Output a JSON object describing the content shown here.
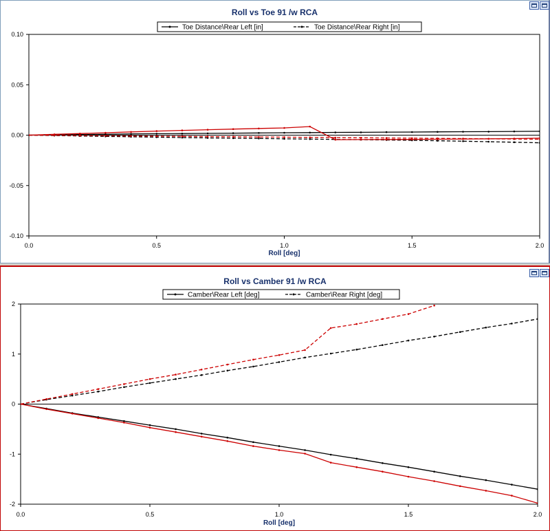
{
  "chart_data": [
    {
      "type": "line",
      "title": "Roll vs Toe 91 /w RCA",
      "xlabel": "Roll [deg]",
      "ylabel": "",
      "xlim": [
        0,
        2
      ],
      "ylim": [
        -0.1,
        0.1
      ],
      "xticks": [
        "0.0",
        "0.5",
        "1.0",
        "1.5",
        "2.0"
      ],
      "yticks": [
        "0.10",
        "0.05",
        "0.00",
        "-0.05",
        "-0.10"
      ],
      "grid": false,
      "legend": "top-center",
      "legend_entries": [
        "Toe Distance\\Rear Left [in]",
        "Toe Distance\\Rear Right [in]"
      ],
      "series": [
        {
          "name": "Toe Distance\\Rear Left [in]",
          "color": "#000000",
          "style": "solid",
          "x": [
            0,
            0.1,
            0.2,
            0.3,
            0.4,
            0.5,
            0.6,
            0.7,
            0.8,
            0.9,
            1.0,
            1.1,
            1.2,
            1.3,
            1.4,
            1.5,
            1.6,
            1.7,
            1.8,
            1.9,
            2.0
          ],
          "y": [
            0,
            0.0003,
            0.0006,
            0.0009,
            0.0012,
            0.0014,
            0.0016,
            0.0018,
            0.002,
            0.0022,
            0.0024,
            0.0025,
            0.0027,
            0.0028,
            0.003,
            0.0031,
            0.0033,
            0.0034,
            0.0035,
            0.0037,
            0.0038
          ]
        },
        {
          "name": "Toe Distance\\Rear Right [in]",
          "color": "#000000",
          "style": "dashed",
          "x": [
            0,
            0.1,
            0.2,
            0.3,
            0.4,
            0.5,
            0.6,
            0.7,
            0.8,
            0.9,
            1.0,
            1.1,
            1.2,
            1.3,
            1.4,
            1.5,
            1.6,
            1.7,
            1.8,
            1.9,
            2.0
          ],
          "y": [
            0,
            -0.0004,
            -0.0008,
            -0.0012,
            -0.0016,
            -0.002,
            -0.0024,
            -0.0027,
            -0.003,
            -0.0033,
            -0.0036,
            -0.0039,
            -0.0042,
            -0.0045,
            -0.0048,
            -0.0051,
            -0.0055,
            -0.006,
            -0.0065,
            -0.007,
            -0.0076
          ]
        },
        {
          "name": "",
          "color": "#cc0000",
          "style": "solid",
          "x": [
            0,
            0.1,
            0.2,
            0.3,
            0.4,
            0.5,
            0.6,
            0.7,
            0.8,
            0.9,
            1.0,
            1.1,
            1.2,
            1.3,
            1.4,
            1.5,
            1.6,
            1.7,
            1.8,
            1.9,
            2.0
          ],
          "y": [
            0,
            0.0008,
            0.0016,
            0.0024,
            0.0032,
            0.004,
            0.0047,
            0.0054,
            0.006,
            0.0066,
            0.0072,
            0.0085,
            -0.0045,
            -0.0044,
            -0.0043,
            -0.0042,
            -0.004,
            -0.0038,
            -0.0036,
            -0.0034,
            -0.003
          ]
        },
        {
          "name": "",
          "color": "#cc0000",
          "style": "dashed",
          "x": [
            0,
            0.1,
            0.2,
            0.3,
            0.4,
            0.5,
            0.6,
            0.7,
            0.8,
            0.9,
            1.0,
            1.1,
            1.2,
            1.3,
            1.4,
            1.5,
            1.6,
            1.7,
            1.8,
            1.9,
            2.0
          ],
          "y": [
            0,
            -0.0002,
            -0.0004,
            -0.0006,
            -0.0008,
            -0.001,
            -0.0012,
            -0.0014,
            -0.0016,
            -0.0018,
            -0.002,
            -0.0022,
            -0.0024,
            -0.0026,
            -0.0028,
            -0.003,
            -0.0032,
            -0.0034,
            -0.0036,
            -0.0038,
            -0.004
          ]
        }
      ]
    },
    {
      "type": "line",
      "title": "Roll vs Camber 91 /w RCA",
      "xlabel": "Roll [deg]",
      "ylabel": "",
      "xlim": [
        0,
        2
      ],
      "ylim": [
        -2,
        2
      ],
      "xticks": [
        "0.0",
        "0.5",
        "1.0",
        "1.5",
        "2.0"
      ],
      "yticks": [
        "2",
        "1",
        "0",
        "-1",
        "-2"
      ],
      "grid": false,
      "legend": "top-center",
      "legend_entries": [
        "Camber\\Rear Left [deg]",
        "Camber\\Rear Right [deg]"
      ],
      "series": [
        {
          "name": "Camber\\Rear Left [deg]",
          "color": "#000000",
          "style": "solid",
          "x": [
            0,
            0.1,
            0.2,
            0.3,
            0.4,
            0.5,
            0.6,
            0.7,
            0.8,
            0.9,
            1.0,
            1.1,
            1.2,
            1.3,
            1.4,
            1.5,
            1.6,
            1.7,
            1.8,
            1.9,
            2.0
          ],
          "y": [
            0,
            -0.09,
            -0.18,
            -0.26,
            -0.34,
            -0.42,
            -0.5,
            -0.59,
            -0.67,
            -0.76,
            -0.84,
            -0.92,
            -1.01,
            -1.09,
            -1.18,
            -1.26,
            -1.35,
            -1.44,
            -1.52,
            -1.61,
            -1.7
          ]
        },
        {
          "name": "Camber\\Rear Right [deg]",
          "color": "#000000",
          "style": "dashed",
          "x": [
            0,
            0.1,
            0.2,
            0.3,
            0.4,
            0.5,
            0.6,
            0.7,
            0.8,
            0.9,
            1.0,
            1.1,
            1.2,
            1.3,
            1.4,
            1.5,
            1.6,
            1.7,
            1.8,
            1.9,
            2.0
          ],
          "y": [
            0,
            0.09,
            0.17,
            0.25,
            0.34,
            0.42,
            0.5,
            0.58,
            0.67,
            0.75,
            0.84,
            0.93,
            1.01,
            1.09,
            1.18,
            1.27,
            1.35,
            1.44,
            1.53,
            1.61,
            1.7
          ]
        },
        {
          "name": "",
          "color": "#cc0000",
          "style": "solid",
          "x": [
            0,
            0.1,
            0.2,
            0.3,
            0.4,
            0.5,
            0.6,
            0.7,
            0.8,
            0.9,
            1.0,
            1.1,
            1.2,
            1.3,
            1.4,
            1.5,
            1.6,
            1.7,
            1.8,
            1.9,
            2.0
          ],
          "y": [
            0,
            -0.1,
            -0.19,
            -0.28,
            -0.37,
            -0.47,
            -0.56,
            -0.65,
            -0.74,
            -0.84,
            -0.92,
            -0.99,
            -1.17,
            -1.26,
            -1.35,
            -1.45,
            -1.54,
            -1.64,
            -1.73,
            -1.83,
            -1.98
          ]
        },
        {
          "name": "",
          "color": "#cc0000",
          "style": "dashed",
          "x": [
            0,
            0.1,
            0.2,
            0.3,
            0.4,
            0.5,
            0.6,
            0.7,
            0.8,
            0.9,
            1.0,
            1.1,
            1.2,
            1.3,
            1.4,
            1.5,
            1.6
          ],
          "y": [
            0,
            0.1,
            0.2,
            0.3,
            0.4,
            0.5,
            0.59,
            0.69,
            0.79,
            0.89,
            0.98,
            1.08,
            1.52,
            1.6,
            1.7,
            1.8,
            1.97
          ]
        }
      ]
    }
  ]
}
